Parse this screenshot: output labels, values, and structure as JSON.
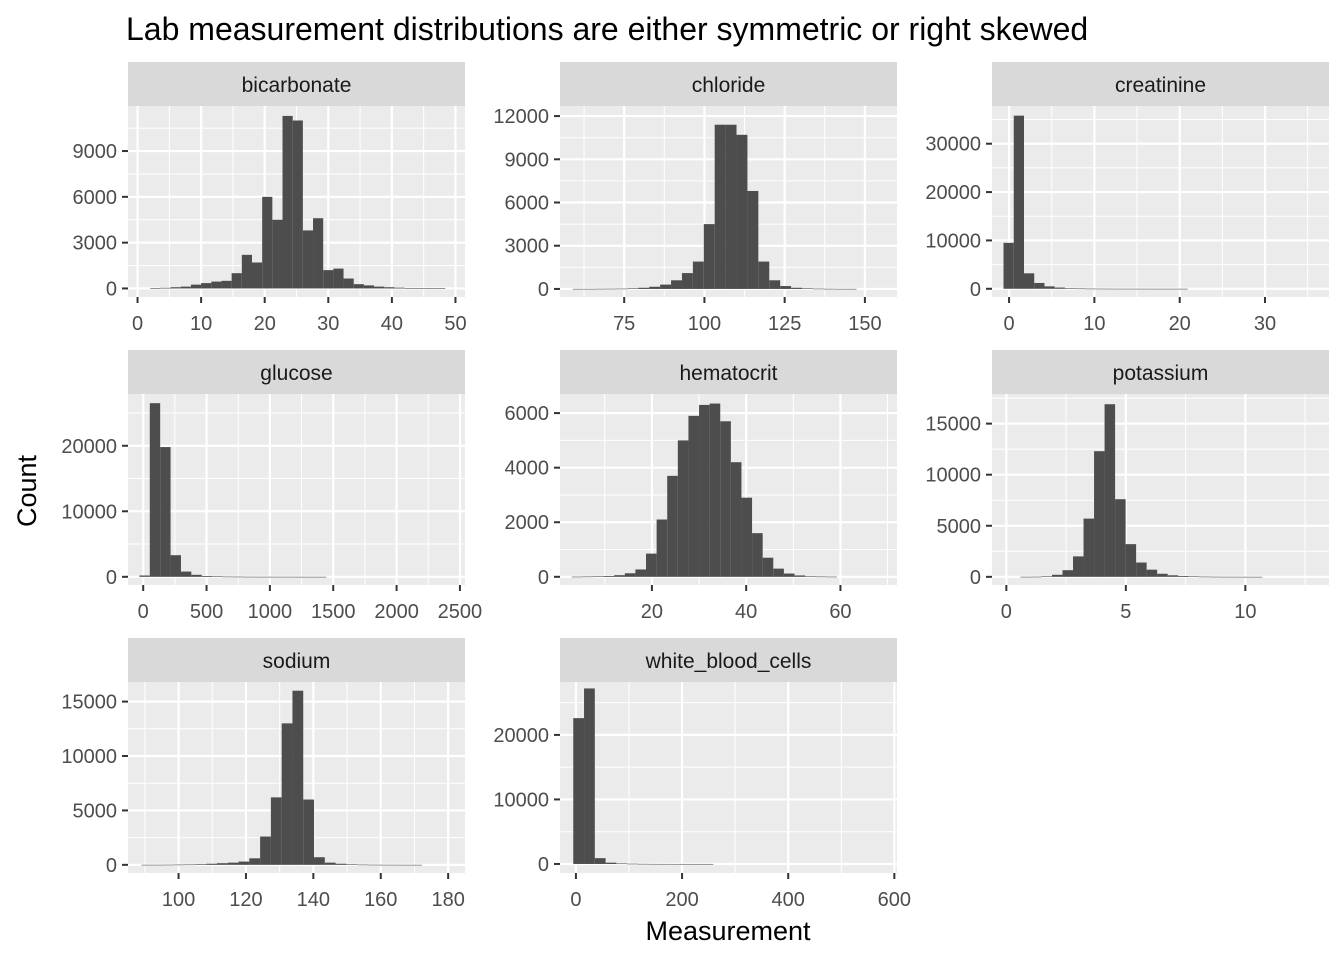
{
  "chart_data": {
    "type": "histogram",
    "title": "Lab measurement distributions are either symmetric or right skewed",
    "xlabel": "Measurement",
    "ylabel": "Count",
    "colors": {
      "panel_background": "#ebebeb",
      "strip_background": "#d9d9d9",
      "bar_fill": "#4d4d4d",
      "gridline": "#ffffff"
    },
    "panels": [
      {
        "name": "bicarbonate",
        "xlim": [
          -1.5,
          51.5
        ],
        "ylim": [
          -560,
          11950
        ],
        "x_ticks": [
          0,
          10,
          20,
          30,
          40,
          50
        ],
        "x_tick_labels": [
          "0",
          "10",
          "20",
          "30",
          "40",
          "50"
        ],
        "y_ticks": [
          0,
          3000,
          6000,
          9000
        ],
        "y_tick_labels": [
          "0",
          "3000",
          "6000",
          "9000"
        ],
        "bin_start": 0.4,
        "bin_width": 1.6,
        "counts": [
          0,
          20,
          40,
          80,
          120,
          250,
          350,
          450,
          500,
          1000,
          2200,
          1700,
          6000,
          4500,
          11300,
          11000,
          3800,
          4600,
          1200,
          1300,
          650,
          280,
          200,
          120,
          80,
          50,
          30,
          20,
          10,
          5
        ]
      },
      {
        "name": "chloride",
        "xlim": [
          55,
          160
        ],
        "ylim": [
          -560,
          12700
        ],
        "x_ticks": [
          75,
          100,
          125,
          150
        ],
        "x_tick_labels": [
          "75",
          "100",
          "125",
          "150"
        ],
        "y_ticks": [
          0,
          3000,
          6000,
          9000,
          12000
        ],
        "y_tick_labels": [
          "0",
          "3000",
          "6000",
          "9000",
          "12000"
        ],
        "bin_start": 59,
        "bin_width": 3.4,
        "counts": [
          5,
          5,
          10,
          15,
          20,
          40,
          80,
          150,
          300,
          600,
          1100,
          1900,
          4500,
          11400,
          11400,
          10700,
          6800,
          1900,
          600,
          200,
          80,
          40,
          20,
          10,
          5,
          5,
          0,
          0,
          0,
          0
        ]
      },
      {
        "name": "creatinine",
        "xlim": [
          -2,
          37.5
        ],
        "ylim": [
          -1700,
          37800
        ],
        "x_ticks": [
          0,
          10,
          20,
          30
        ],
        "x_tick_labels": [
          "0",
          "10",
          "20",
          "30"
        ],
        "y_ticks": [
          0,
          10000,
          20000,
          30000
        ],
        "y_tick_labels": [
          "0",
          "10000",
          "20000",
          "30000"
        ],
        "bin_start": -0.65,
        "bin_width": 1.2,
        "counts": [
          9500,
          35800,
          3200,
          1200,
          500,
          250,
          120,
          60,
          30,
          20,
          10,
          5,
          5,
          3,
          2,
          1,
          1,
          1,
          0,
          0,
          0,
          0,
          0,
          0,
          0,
          0,
          0,
          0,
          0,
          0
        ]
      },
      {
        "name": "glucose",
        "xlim": [
          -120,
          2540
        ],
        "ylim": [
          -1250,
          27900
        ],
        "x_ticks": [
          0,
          500,
          1000,
          1500,
          2000,
          2500
        ],
        "x_tick_labels": [
          "0",
          "500",
          "1000",
          "1500",
          "2000",
          "2500"
        ],
        "y_ticks": [
          0,
          10000,
          20000
        ],
        "y_tick_labels": [
          "0",
          "10000",
          "20000"
        ],
        "bin_start": -30,
        "bin_width": 82,
        "counts": [
          200,
          26500,
          19800,
          3300,
          800,
          300,
          120,
          60,
          30,
          20,
          10,
          5,
          5,
          3,
          2,
          1,
          1,
          1,
          0,
          0,
          0,
          0,
          0,
          0,
          0,
          0,
          0,
          0,
          0,
          0
        ]
      },
      {
        "name": "hematocrit",
        "xlim": [
          0.5,
          72
        ],
        "ylim": [
          -300,
          6700
        ],
        "x_ticks": [
          20,
          40,
          60
        ],
        "x_tick_labels": [
          "20",
          "40",
          "60"
        ],
        "y_ticks": [
          0,
          2000,
          4000,
          6000
        ],
        "y_tick_labels": [
          "0",
          "2000",
          "4000",
          "6000"
        ],
        "bin_start": 3,
        "bin_width": 2.25,
        "counts": [
          5,
          10,
          15,
          30,
          60,
          130,
          270,
          850,
          2100,
          3700,
          5000,
          5900,
          6300,
          6350,
          5700,
          4200,
          2900,
          1600,
          700,
          300,
          120,
          50,
          20,
          10,
          5,
          0,
          0,
          0,
          0,
          0
        ]
      },
      {
        "name": "potassium",
        "xlim": [
          -0.6,
          13.5
        ],
        "ylim": [
          -800,
          17900
        ],
        "x_ticks": [
          0,
          5,
          10
        ],
        "x_tick_labels": [
          "0",
          "5",
          "10"
        ],
        "y_ticks": [
          0,
          5000,
          10000,
          15000
        ],
        "y_tick_labels": [
          "0",
          "5000",
          "10000",
          "15000"
        ],
        "bin_start": 0.15,
        "bin_width": 0.44,
        "counts": [
          0,
          5,
          10,
          50,
          200,
          650,
          2000,
          5700,
          12300,
          16900,
          7600,
          3200,
          1400,
          700,
          300,
          150,
          80,
          40,
          20,
          10,
          5,
          3,
          2,
          1,
          0,
          0,
          0,
          0,
          0,
          0
        ]
      },
      {
        "name": "sodium",
        "xlim": [
          85,
          185
        ],
        "ylim": [
          -750,
          16800
        ],
        "x_ticks": [
          100,
          120,
          140,
          160,
          180
        ],
        "x_tick_labels": [
          "100",
          "120",
          "140",
          "160",
          "180"
        ],
        "y_ticks": [
          0,
          5000,
          10000,
          15000
        ],
        "y_tick_labels": [
          "0",
          "5000",
          "10000",
          "15000"
        ],
        "bin_start": 89,
        "bin_width": 3.2,
        "counts": [
          5,
          5,
          10,
          20,
          30,
          60,
          100,
          150,
          200,
          300,
          600,
          2600,
          6200,
          13000,
          16000,
          6000,
          700,
          200,
          100,
          50,
          20,
          10,
          5,
          3,
          2,
          1,
          0,
          0,
          0,
          0
        ]
      },
      {
        "name": "white_blood_cells",
        "xlim": [
          -30,
          605
        ],
        "ylim": [
          -1400,
          28200
        ],
        "x_ticks": [
          0,
          200,
          400,
          600
        ],
        "x_tick_labels": [
          "0",
          "200",
          "400",
          "600"
        ],
        "y_ticks": [
          0,
          10000,
          20000
        ],
        "y_tick_labels": [
          "0",
          "10000",
          "20000"
        ],
        "bin_start": -5,
        "bin_width": 20.3,
        "counts": [
          22600,
          27200,
          900,
          200,
          80,
          40,
          20,
          10,
          5,
          3,
          2,
          1,
          1,
          0,
          0,
          0,
          0,
          0,
          0,
          0,
          0,
          0,
          0,
          0,
          0,
          0,
          0,
          0,
          0,
          0
        ]
      }
    ]
  }
}
